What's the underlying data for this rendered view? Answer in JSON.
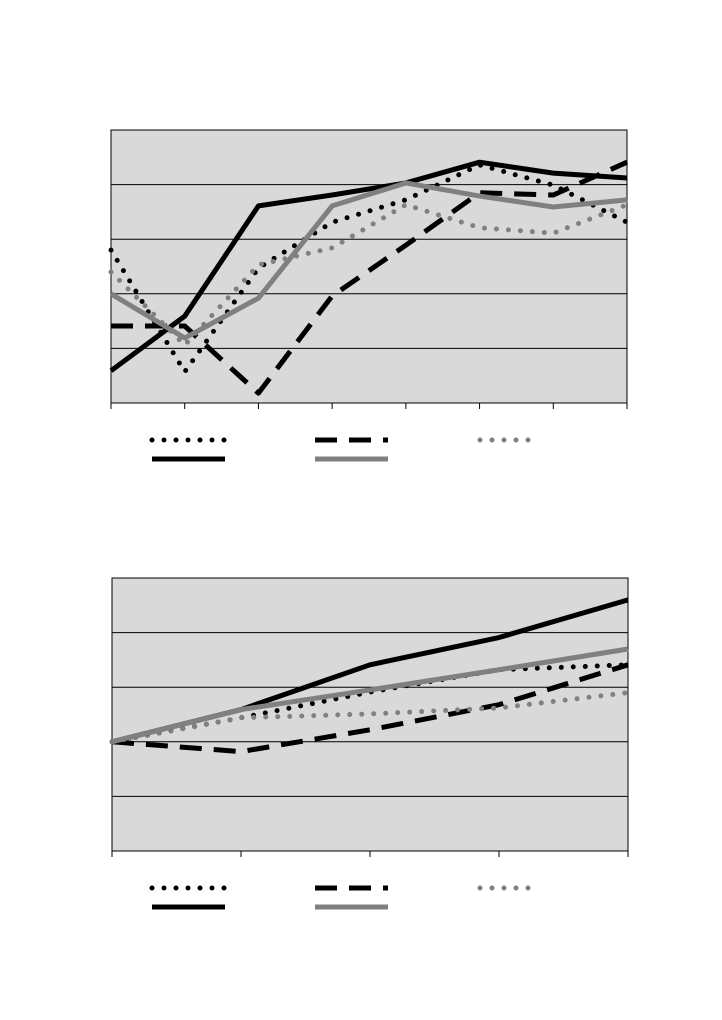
{
  "chart_data": [
    {
      "type": "line",
      "background": "#d9d9d9",
      "grid": true,
      "categories": [
        null,
        null,
        null,
        null,
        null,
        null,
        null,
        null
      ],
      "ylim": [
        0,
        5
      ],
      "yticks": [
        0,
        1,
        2,
        3,
        4,
        5
      ],
      "series": [
        {
          "color": "#000000",
          "dash": "dot",
          "values": [
            2.8,
            0.57,
            2.47,
            3.31,
            3.72,
            4.36,
            3.99,
            3.31
          ]
        },
        {
          "color": "#000000",
          "dash": "dash",
          "values": [
            1.41,
            1.41,
            0.18,
            1.96,
            2.89,
            3.85,
            3.81,
            4.41
          ]
        },
        {
          "color": "#808080",
          "dash": "dot",
          "values": [
            2.4,
            1.06,
            2.53,
            2.84,
            3.63,
            3.21,
            3.11,
            3.63
          ]
        },
        {
          "color": "#000000",
          "dash": "solid",
          "values": [
            0.59,
            1.59,
            3.61,
            3.81,
            4.03,
            4.41,
            4.21,
            4.12
          ]
        },
        {
          "color": "#808080",
          "dash": "solid",
          "values": [
            2.0,
            1.19,
            1.92,
            3.61,
            4.03,
            3.79,
            3.59,
            3.72
          ]
        }
      ]
    },
    {
      "type": "line",
      "background": "#d9d9d9",
      "grid": true,
      "categories": [
        null,
        null,
        null,
        null,
        null
      ],
      "ylim": [
        0,
        5
      ],
      "yticks": [
        0,
        1,
        2,
        3,
        4,
        5
      ],
      "series": [
        {
          "color": "#000000",
          "dash": "dot",
          "values": [
            2.0,
            2.44,
            2.91,
            3.32,
            3.41
          ]
        },
        {
          "color": "#000000",
          "dash": "dash",
          "values": [
            2.0,
            1.82,
            2.22,
            2.68,
            3.41
          ]
        },
        {
          "color": "#808080",
          "dash": "dot",
          "values": [
            2.0,
            2.44,
            2.51,
            2.62,
            2.9
          ]
        },
        {
          "color": "#000000",
          "dash": "solid",
          "values": [
            2.0,
            2.59,
            3.41,
            3.91,
            4.6
          ]
        },
        {
          "color": "#808080",
          "dash": "solid",
          "values": [
            2.0,
            2.59,
            2.95,
            3.32,
            3.7
          ]
        }
      ]
    }
  ]
}
